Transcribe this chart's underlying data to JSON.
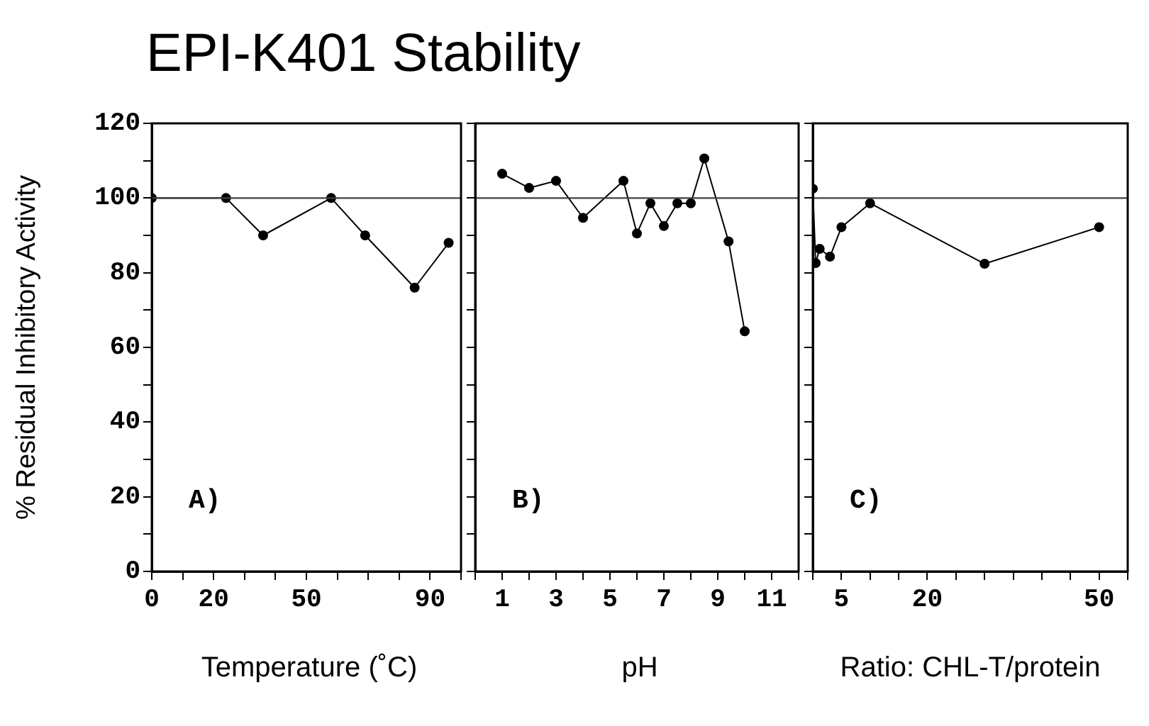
{
  "chart_data": [
    {
      "type": "line",
      "title": "EPI-K401 Stability",
      "ylabel": "% Residual Inhibitory Activity",
      "xlabel": "Temperature (˚C)",
      "annotations": [
        "A)"
      ],
      "x": [
        0,
        24,
        36,
        58,
        69,
        85,
        96
      ],
      "values": [
        100,
        100,
        90,
        100,
        90,
        76,
        88
      ],
      "color": "#000000",
      "marker": "circle",
      "line_style": "solid",
      "xlim": [
        0,
        100
      ],
      "xticks": [
        0,
        {
          "value": 10,
          "label": null
        },
        20,
        {
          "value": 30,
          "label": null
        },
        {
          "value": 40,
          "label": null
        },
        50,
        {
          "value": 60,
          "label": null
        },
        {
          "value": 70,
          "label": null
        },
        {
          "value": 80,
          "label": null
        },
        90,
        {
          "value": 100,
          "label": null
        }
      ],
      "ylim": [
        0,
        120
      ],
      "yticks": [
        0,
        {
          "value": 10,
          "label": null
        },
        20,
        {
          "value": 30,
          "label": null
        },
        40,
        {
          "value": 50,
          "label": null
        },
        60,
        {
          "value": 70,
          "label": null
        },
        80,
        {
          "value": 90,
          "label": null
        },
        100,
        {
          "value": 110,
          "label": null
        },
        120
      ],
      "ref_lines": [
        {
          "axis": "y",
          "value": 100,
          "color": "#404040"
        }
      ]
    },
    {
      "type": "line",
      "xlabel": "pH",
      "annotations": [
        "B)"
      ],
      "tick_labels": "x",
      "x": [
        1,
        2,
        3,
        4,
        5.5,
        6,
        6.5,
        7,
        7.5,
        8,
        8.5,
        9.4,
        10
      ],
      "values": [
        106.5,
        102.7,
        104.6,
        94.7,
        104.6,
        90.5,
        98.6,
        92.5,
        98.6,
        98.6,
        110.6,
        88.4,
        64.3
      ],
      "color": "#000000",
      "marker": "circle",
      "line_style": "solid",
      "xlim": [
        0,
        12
      ],
      "xticks": [
        {
          "value": 0,
          "label": null
        },
        1,
        {
          "value": 2,
          "label": null
        },
        3,
        {
          "value": 4,
          "label": null
        },
        5,
        {
          "value": 6,
          "label": null
        },
        7,
        {
          "value": 8,
          "label": null
        },
        9,
        {
          "value": 10,
          "label": null
        },
        11,
        {
          "value": 12,
          "label": null
        }
      ],
      "ylim": [
        0,
        120
      ],
      "yticks": [
        0,
        {
          "value": 10,
          "label": null
        },
        20,
        {
          "value": 30,
          "label": null
        },
        40,
        {
          "value": 50,
          "label": null
        },
        60,
        {
          "value": 70,
          "label": null
        },
        80,
        {
          "value": 90,
          "label": null
        },
        100,
        {
          "value": 110,
          "label": null
        },
        120
      ],
      "ref_lines": [
        {
          "axis": "y",
          "value": 100,
          "color": "#404040"
        }
      ]
    },
    {
      "type": "line",
      "xlabel": "Ratio: CHL-T/protein",
      "annotations": [
        "C)"
      ],
      "tick_labels": "x",
      "x": [
        0,
        0.5,
        1.2,
        3,
        5,
        10,
        30,
        50
      ],
      "values": [
        102.5,
        82.6,
        86.4,
        84.3,
        92.2,
        98.6,
        82.4,
        92.2
      ],
      "color": "#000000",
      "marker": "circle",
      "line_style": "solid",
      "xlim": [
        0,
        55
      ],
      "xticks": [
        {
          "value": 0,
          "label": null
        },
        5,
        {
          "value": 10,
          "label": null
        },
        {
          "value": 15,
          "label": null
        },
        20,
        {
          "value": 25,
          "label": null
        },
        {
          "value": 30,
          "label": null
        },
        {
          "value": 35,
          "label": null
        },
        {
          "value": 40,
          "label": null
        },
        {
          "value": 45,
          "label": null
        },
        50,
        {
          "value": 55,
          "label": null
        }
      ],
      "ylim": [
        0,
        120
      ],
      "yticks": [
        0,
        {
          "value": 10,
          "label": null
        },
        20,
        {
          "value": 30,
          "label": null
        },
        40,
        {
          "value": 50,
          "label": null
        },
        60,
        {
          "value": 70,
          "label": null
        },
        80,
        {
          "value": 90,
          "label": null
        },
        100,
        {
          "value": 110,
          "label": null
        },
        120
      ],
      "ref_lines": [
        {
          "axis": "y",
          "value": 100,
          "color": "#404040"
        }
      ]
    }
  ]
}
